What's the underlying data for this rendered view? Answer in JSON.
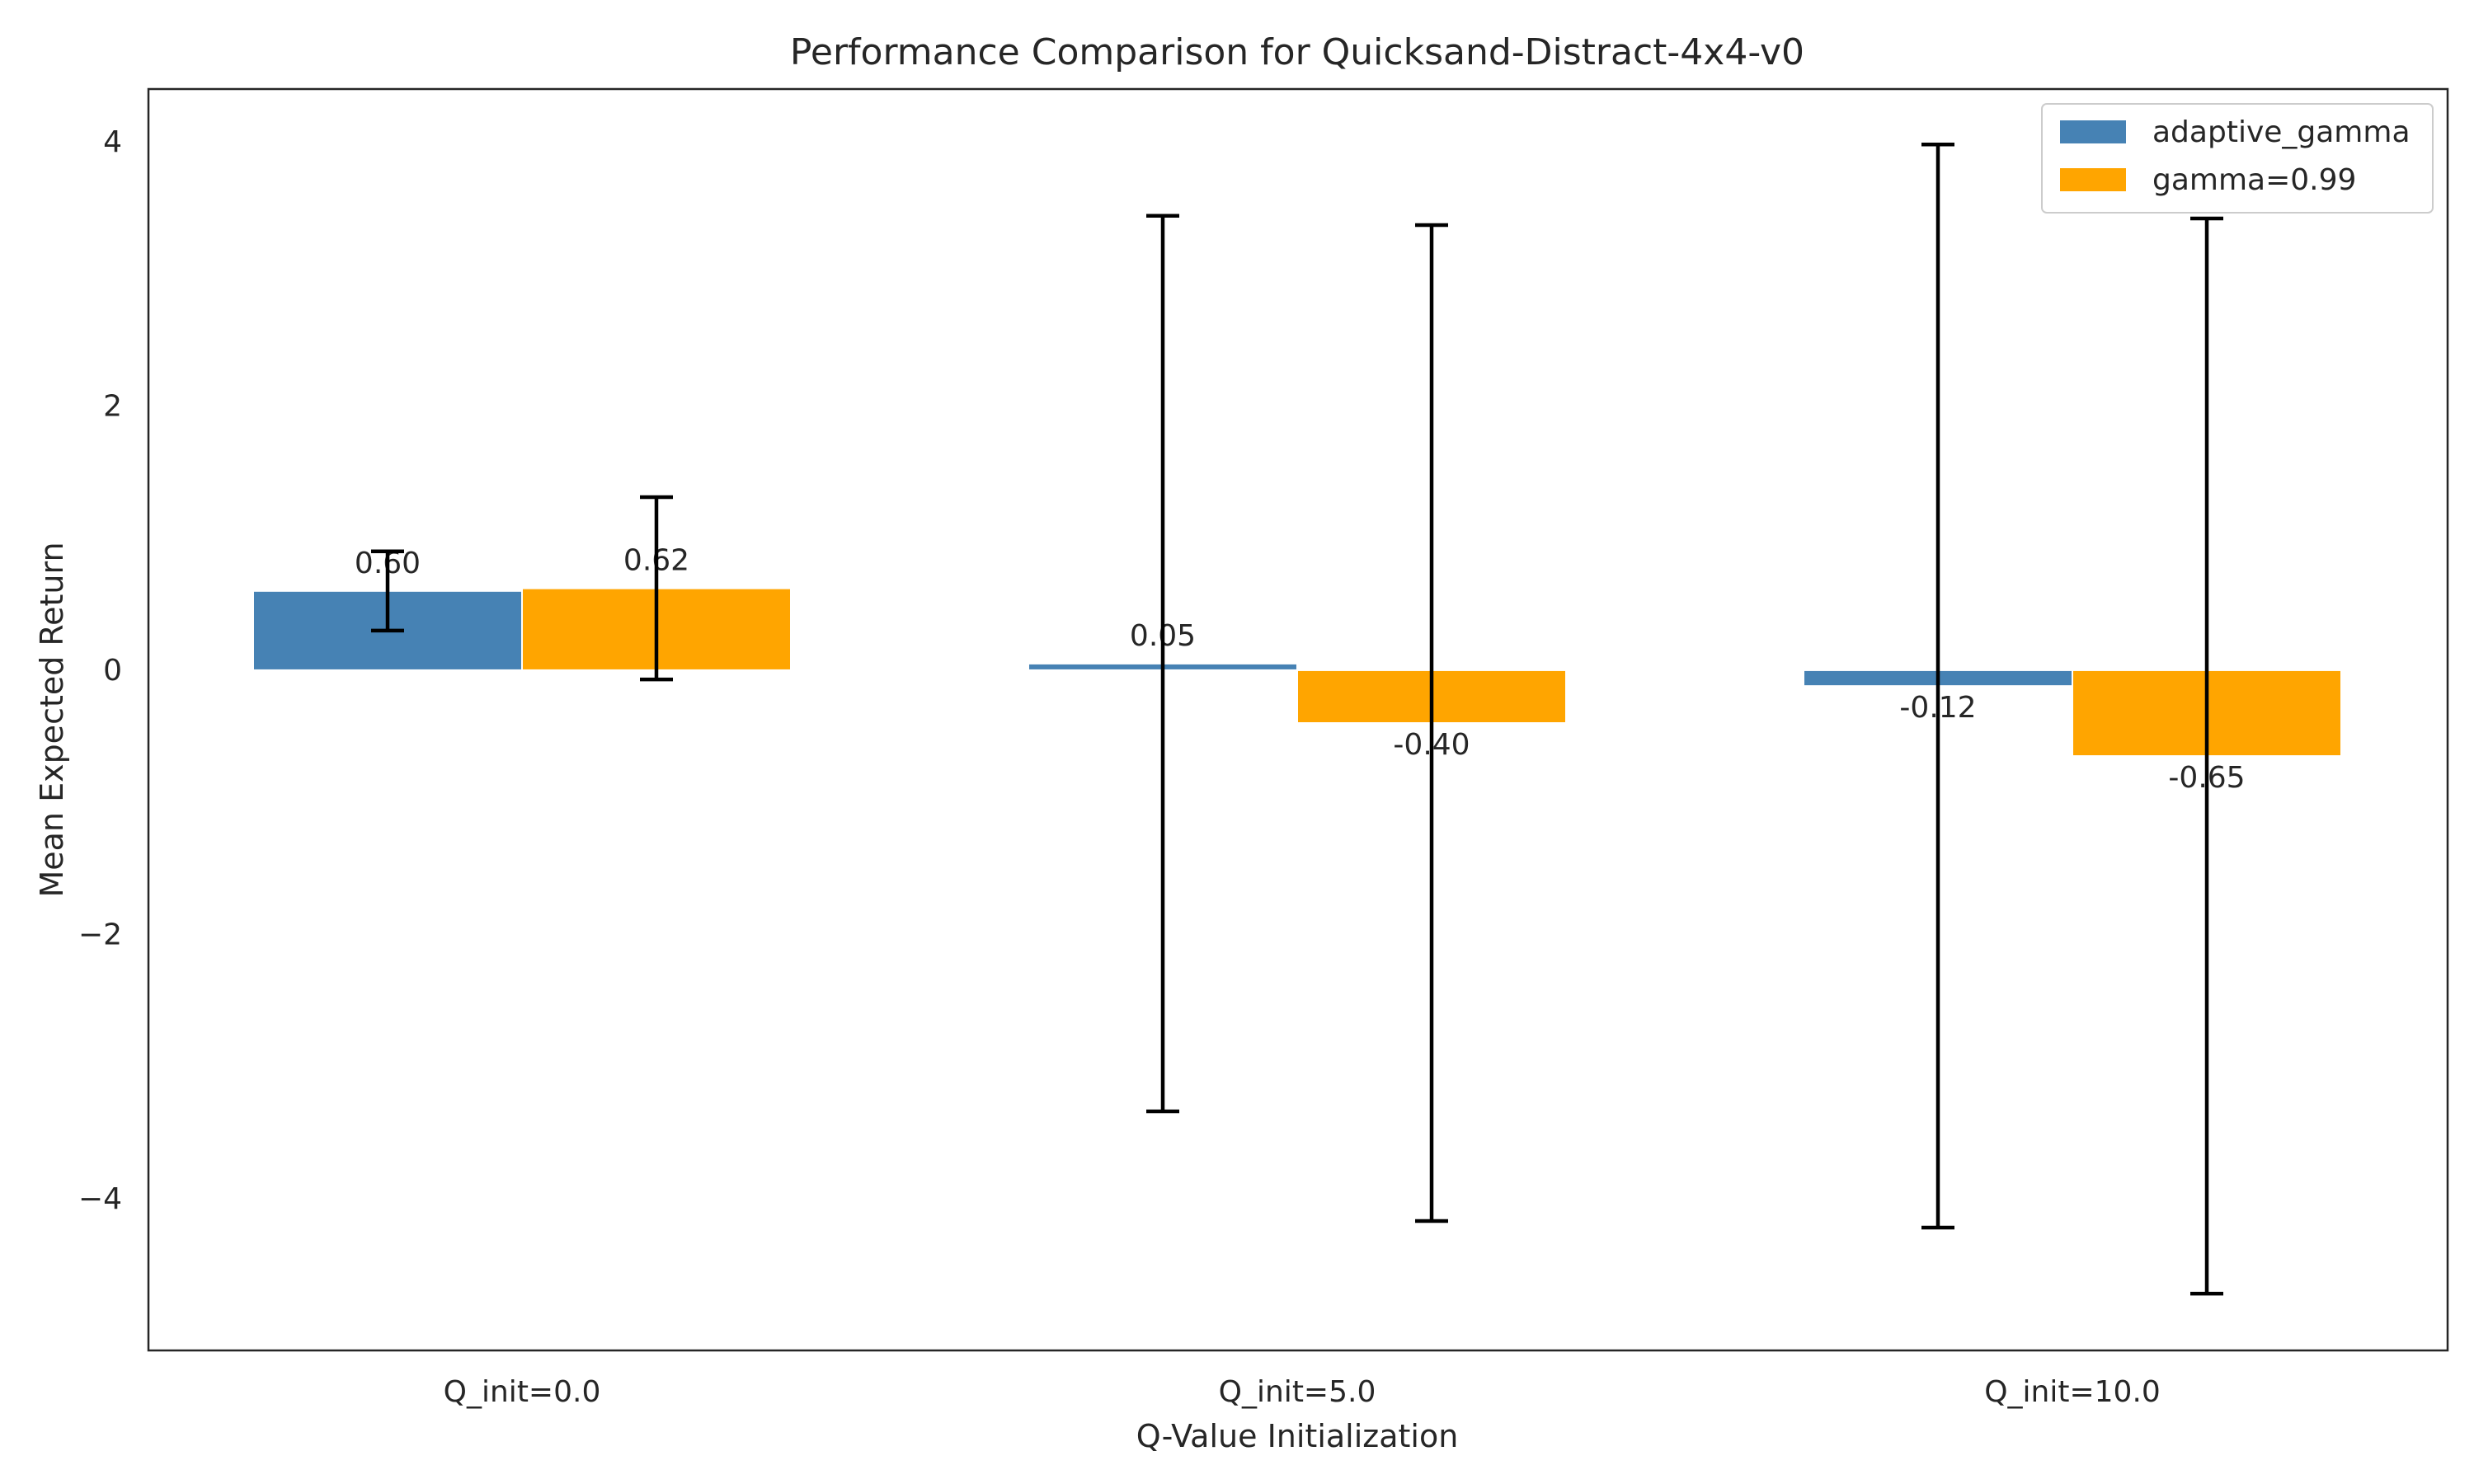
{
  "chart_data": {
    "type": "bar",
    "title": "Performance Comparison for Quicksand-Distract-4x4-v0",
    "xlabel": "Q-Value Initialization",
    "ylabel": "Mean Expected Return",
    "categories": [
      "Q_init=0.0",
      "Q_init=5.0",
      "Q_init=10.0"
    ],
    "ylim": [
      -5.15,
      4.4
    ],
    "yticks": [
      4,
      2,
      0,
      -2,
      -4
    ],
    "ytick_labels": [
      "4",
      "2",
      "0",
      "−2",
      "−4"
    ],
    "grid": false,
    "legend_position": "top-right",
    "series": [
      {
        "name": "adaptive_gamma",
        "color": "#4682b4",
        "values": [
          0.6,
          0.05,
          -0.12
        ],
        "value_labels": [
          "0.60",
          "0.05",
          "-0.12"
        ],
        "error": [
          0.3,
          3.39,
          4.1
        ]
      },
      {
        "name": "gamma=0.99",
        "color": "#ffa500",
        "values": [
          0.62,
          -0.4,
          -0.65
        ],
        "value_labels": [
          "0.62",
          "-0.40",
          "-0.65"
        ],
        "error": [
          0.69,
          3.77,
          4.07
        ]
      }
    ]
  }
}
